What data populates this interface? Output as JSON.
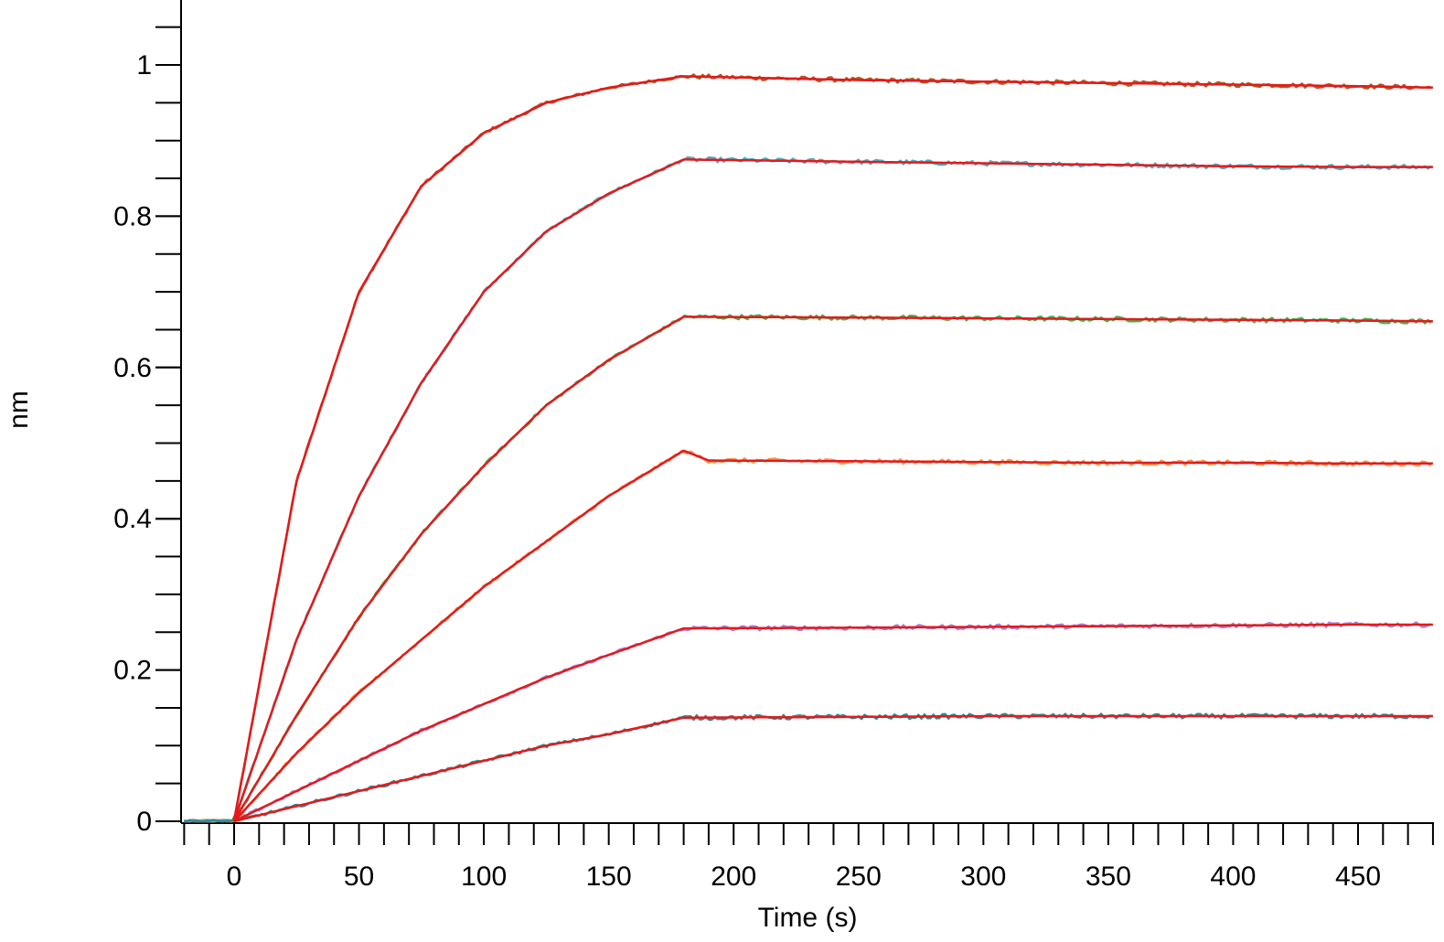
{
  "chart_data": {
    "type": "line",
    "xlabel": "Time (s)",
    "ylabel": "nm",
    "xlim": [
      -20,
      480
    ],
    "ylim": [
      0,
      1.08
    ],
    "x_ticks": [
      0,
      50,
      100,
      150,
      200,
      250,
      300,
      350,
      400,
      450
    ],
    "y_ticks": [
      0,
      0.2,
      0.4,
      0.6,
      0.8,
      1
    ],
    "y_tick_labels": [
      "0",
      "0.2",
      "0.4",
      "0.6",
      "0.8",
      "1"
    ],
    "x_minor_step": 10,
    "y_minor_step": 0.05,
    "grid": false,
    "association_end": 180,
    "series": [
      {
        "color": "#b35a1f",
        "fit_color": "#e31a1c",
        "x": [
          0,
          25,
          50,
          75,
          100,
          125,
          150,
          180,
          250,
          300,
          350,
          400,
          450,
          480
        ],
        "values": [
          0,
          0.45,
          0.7,
          0.84,
          0.91,
          0.95,
          0.97,
          0.985,
          0.98,
          0.978,
          0.976,
          0.974,
          0.972,
          0.97
        ]
      },
      {
        "color": "#4bacc6",
        "fit_color": "#e31a1c",
        "x": [
          0,
          25,
          50,
          75,
          100,
          125,
          150,
          180,
          250,
          300,
          350,
          400,
          450,
          480
        ],
        "values": [
          0,
          0.24,
          0.43,
          0.58,
          0.7,
          0.78,
          0.83,
          0.875,
          0.872,
          0.87,
          0.868,
          0.866,
          0.865,
          0.865
        ]
      },
      {
        "color": "#4caf50",
        "fit_color": "#e31a1c",
        "x": [
          0,
          25,
          50,
          75,
          100,
          125,
          150,
          180,
          250,
          300,
          350,
          400,
          450,
          480
        ],
        "values": [
          0,
          0.14,
          0.27,
          0.38,
          0.47,
          0.55,
          0.61,
          0.667,
          0.666,
          0.665,
          0.664,
          0.663,
          0.662,
          0.661
        ]
      },
      {
        "color": "#f79646",
        "fit_color": "#e31a1c",
        "x": [
          0,
          25,
          50,
          75,
          100,
          125,
          150,
          180,
          190,
          250,
          300,
          350,
          400,
          450,
          480
        ],
        "values": [
          0,
          0.09,
          0.17,
          0.24,
          0.31,
          0.37,
          0.43,
          0.49,
          0.477,
          0.476,
          0.475,
          0.474,
          0.474,
          0.473,
          0.473
        ]
      },
      {
        "color": "#b07fd6",
        "fit_color": "#e31a1c",
        "x": [
          0,
          25,
          50,
          75,
          100,
          125,
          150,
          180,
          250,
          300,
          350,
          400,
          450,
          480
        ],
        "values": [
          0,
          0.04,
          0.08,
          0.12,
          0.155,
          0.19,
          0.22,
          0.255,
          0.256,
          0.257,
          0.258,
          0.259,
          0.26,
          0.26
        ]
      },
      {
        "color": "#2a8c95",
        "fit_color": "#e31a1c",
        "x": [
          0,
          25,
          50,
          75,
          100,
          125,
          150,
          180,
          250,
          300,
          350,
          400,
          450,
          480
        ],
        "values": [
          0,
          0.02,
          0.04,
          0.06,
          0.08,
          0.1,
          0.115,
          0.137,
          0.138,
          0.139,
          0.139,
          0.139,
          0.139,
          0.139
        ]
      }
    ]
  }
}
